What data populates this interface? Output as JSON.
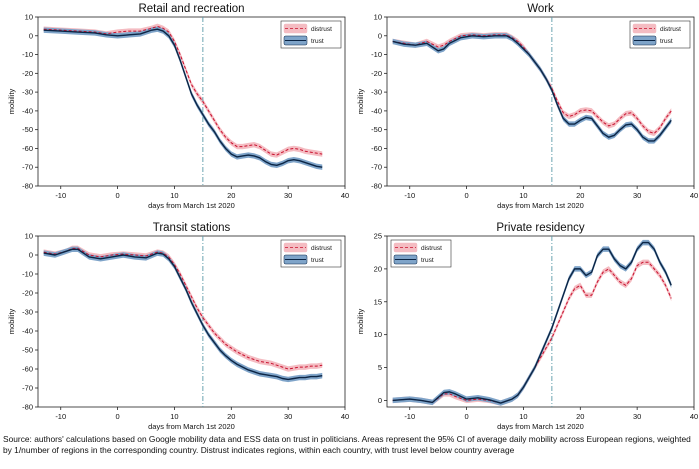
{
  "note": "Source: authors' calculations based on Google mobility data and ESS data on trust in politicians. Areas represent the 95% CI of average daily mobility across European regions, weighted by 1/number of regions in the corresponding country. Distrust indicates regions, within each country, with trust level below country average",
  "colors": {
    "distrust_line": "#c8102e",
    "distrust_band": "#f4bcc2",
    "trust_line": "#0b2545",
    "trust_band": "#7fa4c9",
    "vline": "#5a9aa8"
  },
  "chart_data": [
    {
      "type": "line",
      "title": "Retail and recreation",
      "xlabel": "days from March 1st 2020",
      "ylabel": "mobility",
      "xlim": [
        -14,
        40
      ],
      "ylim": [
        -80,
        10
      ],
      "xticks": [
        -10,
        0,
        10,
        20,
        30,
        40
      ],
      "yticks": [
        10,
        0,
        -10,
        -20,
        -30,
        -40,
        -50,
        -60,
        -70,
        -80
      ],
      "vline": 15,
      "legend": {
        "position": "top-right",
        "entries": [
          "distrust",
          "trust"
        ]
      },
      "series": [
        {
          "name": "distrust",
          "style": "dashed",
          "x": [
            -13,
            -10,
            -7,
            -4,
            -2,
            0,
            2,
            4,
            6,
            7,
            8,
            9,
            10,
            11,
            12,
            13,
            14,
            15,
            16,
            17,
            18,
            19,
            20,
            21,
            22,
            23,
            24,
            25,
            26,
            27,
            28,
            29,
            30,
            31,
            32,
            33,
            34,
            35,
            36
          ],
          "y": [
            3.5,
            3,
            2.5,
            2,
            1,
            2,
            2.5,
            2.5,
            4,
            5,
            4,
            2,
            -3,
            -10,
            -18,
            -26,
            -31,
            -35,
            -40,
            -45,
            -50,
            -54,
            -57,
            -59,
            -59,
            -58.5,
            -58,
            -59,
            -61,
            -63,
            -63.5,
            -62,
            -60.5,
            -60,
            -60.5,
            -61.5,
            -62,
            -62.5,
            -63
          ]
        },
        {
          "name": "trust",
          "style": "solid",
          "x": [
            -13,
            -10,
            -7,
            -4,
            -2,
            0,
            2,
            4,
            6,
            7,
            8,
            9,
            10,
            11,
            12,
            13,
            14,
            15,
            16,
            17,
            18,
            19,
            20,
            21,
            22,
            23,
            24,
            25,
            26,
            27,
            28,
            29,
            30,
            31,
            32,
            33,
            34,
            35,
            36
          ],
          "y": [
            3,
            2.5,
            2,
            1.5,
            0.5,
            0,
            0.5,
            1,
            3,
            3.5,
            2.5,
            0,
            -5,
            -13,
            -22,
            -31,
            -37,
            -42,
            -47,
            -51,
            -56,
            -60,
            -63,
            -64.5,
            -64,
            -63.5,
            -64,
            -65,
            -67,
            -68.5,
            -69,
            -68,
            -66.5,
            -66,
            -66.5,
            -67.5,
            -68.5,
            -69.5,
            -70
          ]
        }
      ]
    },
    {
      "type": "line",
      "title": "Work",
      "xlabel": "days from March 1st 2020",
      "ylabel": "mobility",
      "xlim": [
        -14,
        40
      ],
      "ylim": [
        -80,
        10
      ],
      "xticks": [
        -10,
        0,
        10,
        20,
        30,
        40
      ],
      "yticks": [
        10,
        0,
        -10,
        -20,
        -30,
        -40,
        -50,
        -60,
        -70,
        -80
      ],
      "vline": 15,
      "legend": {
        "position": "top-right",
        "entries": [
          "distrust",
          "trust"
        ]
      },
      "series": [
        {
          "name": "distrust",
          "style": "dashed",
          "x": [
            -13,
            -11,
            -9,
            -7,
            -5,
            -4,
            -3,
            -1,
            1,
            3,
            5,
            7,
            8,
            9,
            10,
            11,
            12,
            13,
            14,
            15,
            16,
            17,
            18,
            19,
            20,
            21,
            22,
            23,
            24,
            25,
            26,
            27,
            28,
            29,
            30,
            31,
            32,
            33,
            34,
            35,
            36
          ],
          "y": [
            -3,
            -4,
            -5,
            -3,
            -6,
            -5,
            -3,
            0,
            0.5,
            0,
            0.5,
            0.5,
            -1,
            -3,
            -6,
            -10,
            -14,
            -18,
            -23,
            -28,
            -35,
            -41,
            -43,
            -42,
            -40,
            -39.5,
            -40,
            -43,
            -46,
            -48,
            -47,
            -44,
            -41.5,
            -41,
            -44,
            -48,
            -51,
            -52,
            -49,
            -44,
            -40
          ]
        },
        {
          "name": "trust",
          "style": "solid",
          "x": [
            -13,
            -11,
            -9,
            -7,
            -5,
            -4,
            -3,
            -1,
            1,
            3,
            5,
            7,
            8,
            9,
            10,
            11,
            12,
            13,
            14,
            15,
            16,
            17,
            18,
            19,
            20,
            21,
            22,
            23,
            24,
            25,
            26,
            27,
            28,
            29,
            30,
            31,
            32,
            33,
            34,
            35,
            36
          ],
          "y": [
            -3,
            -4.5,
            -5,
            -4,
            -8,
            -7,
            -4,
            -1,
            0,
            -0.5,
            0,
            0,
            -1.5,
            -4,
            -7,
            -10,
            -14,
            -18,
            -23,
            -29,
            -37,
            -44,
            -47,
            -47,
            -45,
            -43.5,
            -44,
            -48,
            -52,
            -54,
            -53,
            -50,
            -47.5,
            -47,
            -50,
            -54,
            -56,
            -56,
            -53,
            -49,
            -45
          ]
        }
      ]
    },
    {
      "type": "line",
      "title": "Transit stations",
      "xlabel": "days from March 1st 2020",
      "ylabel": "mobility",
      "xlim": [
        -14,
        40
      ],
      "ylim": [
        -80,
        10
      ],
      "xticks": [
        -10,
        0,
        10,
        20,
        30,
        40
      ],
      "yticks": [
        10,
        0,
        -10,
        -20,
        -30,
        -40,
        -50,
        -60,
        -70,
        -80
      ],
      "vline": 15,
      "legend": {
        "position": "top-right",
        "entries": [
          "distrust",
          "trust"
        ]
      },
      "series": [
        {
          "name": "distrust",
          "style": "dashed",
          "x": [
            -13,
            -11,
            -9,
            -8,
            -7,
            -5,
            -3,
            -1,
            1,
            3,
            5,
            7,
            8,
            9,
            10,
            11,
            12,
            13,
            14,
            15,
            16,
            17,
            18,
            19,
            20,
            21,
            22,
            23,
            24,
            25,
            26,
            27,
            28,
            29,
            30,
            31,
            32,
            33,
            34,
            35,
            36
          ],
          "y": [
            1.5,
            0.5,
            2,
            3.5,
            3.5,
            0,
            -1,
            0,
            0.5,
            0,
            -0.5,
            1.5,
            1,
            -1,
            -5,
            -10,
            -16,
            -22,
            -28,
            -33,
            -37,
            -41,
            -44,
            -47,
            -49,
            -51,
            -52.5,
            -54,
            -55,
            -56,
            -56.5,
            -57,
            -58,
            -59,
            -60,
            -59.5,
            -59,
            -59,
            -58.5,
            -58.5,
            -58
          ]
        },
        {
          "name": "trust",
          "style": "solid",
          "x": [
            -13,
            -11,
            -9,
            -8,
            -7,
            -5,
            -3,
            -1,
            1,
            3,
            5,
            7,
            8,
            9,
            10,
            11,
            12,
            13,
            14,
            15,
            16,
            17,
            18,
            19,
            20,
            21,
            22,
            23,
            24,
            25,
            26,
            27,
            28,
            29,
            30,
            31,
            32,
            33,
            34,
            35,
            36
          ],
          "y": [
            1,
            0,
            2,
            3,
            3,
            -1,
            -2,
            -1,
            0,
            -1,
            -1.5,
            1,
            0.5,
            -2,
            -6,
            -12,
            -18,
            -25,
            -31,
            -37,
            -42,
            -46,
            -50,
            -53,
            -55.5,
            -57.5,
            -59,
            -60.5,
            -61.5,
            -62.5,
            -63,
            -63.5,
            -64,
            -65,
            -65.5,
            -65,
            -64.5,
            -64.5,
            -64,
            -64,
            -63.5
          ]
        }
      ]
    },
    {
      "type": "line",
      "title": "Private residency",
      "xlabel": "days from March 1st 2020",
      "ylabel": "mobility",
      "xlim": [
        -14,
        40
      ],
      "ylim": [
        -1,
        25
      ],
      "xticks": [
        -10,
        0,
        10,
        20,
        30,
        40
      ],
      "yticks": [
        25,
        20,
        15,
        10,
        5,
        0
      ],
      "vline": 15,
      "legend": {
        "position": "top-left",
        "entries": [
          "distrust",
          "trust"
        ]
      },
      "series": [
        {
          "name": "distrust",
          "style": "dashed",
          "x": [
            -13,
            -10,
            -8,
            -6,
            -4,
            -3,
            -2,
            0,
            2,
            4,
            6,
            8,
            9,
            10,
            11,
            12,
            13,
            14,
            15,
            16,
            17,
            18,
            19,
            20,
            21,
            22,
            23,
            24,
            25,
            26,
            27,
            28,
            29,
            30,
            31,
            32,
            33,
            34,
            35,
            36
          ],
          "y": [
            0,
            0.2,
            0,
            -0.3,
            1,
            1,
            0.6,
            0,
            0.2,
            0,
            -0.4,
            0.2,
            0.8,
            2,
            3.5,
            5,
            6.5,
            8,
            9.5,
            11.5,
            13.5,
            15.5,
            17,
            17.5,
            16,
            16,
            18,
            19.5,
            20,
            19,
            18,
            17.5,
            18.5,
            20.5,
            21,
            21,
            20,
            19,
            17.5,
            15.5
          ]
        },
        {
          "name": "trust",
          "style": "solid",
          "x": [
            -13,
            -10,
            -8,
            -6,
            -4,
            -3,
            -2,
            0,
            2,
            4,
            6,
            8,
            9,
            10,
            11,
            12,
            13,
            14,
            15,
            16,
            17,
            18,
            19,
            20,
            21,
            22,
            23,
            24,
            25,
            26,
            27,
            28,
            29,
            30,
            31,
            32,
            33,
            34,
            35,
            36
          ],
          "y": [
            0,
            0.2,
            0,
            -0.3,
            1.2,
            1.3,
            1,
            0.2,
            0.4,
            0.1,
            -0.4,
            0.2,
            0.8,
            2,
            3.5,
            5,
            7,
            9,
            11,
            13.5,
            16,
            18.5,
            20,
            20,
            19,
            19.5,
            22,
            23,
            23,
            21.5,
            20.5,
            20,
            21,
            23,
            24,
            24,
            23,
            21,
            19.5,
            17.5
          ]
        }
      ]
    }
  ]
}
